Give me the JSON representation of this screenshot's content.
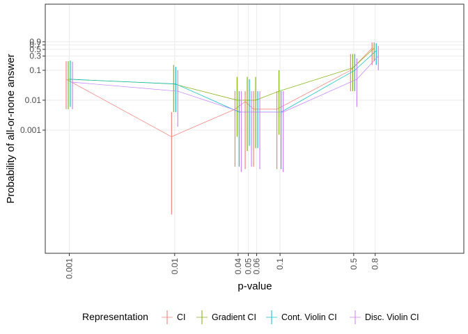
{
  "chart_data": {
    "type": "line",
    "xlabel": "p-value",
    "ylabel": "Probability of all-or-none answer",
    "x_scale": "log",
    "y_scale": "log",
    "x_ticks": [
      0.001,
      0.01,
      0.04,
      0.05,
      0.06,
      0.1,
      0.5,
      0.8
    ],
    "x_tick_labels": [
      "0.001",
      "0.01",
      "0.04",
      "0.05",
      "0.06",
      "0.1",
      "0.5",
      "0.8"
    ],
    "y_ticks": [
      0.001,
      0.01,
      0.1,
      0.3,
      0.5,
      0.7,
      0.9
    ],
    "y_tick_labels": [
      "0.001",
      "0.01",
      "0.1",
      "0.3",
      "0.5",
      "0.7",
      "0.9"
    ],
    "x": [
      0.001,
      0.01,
      0.04,
      0.05,
      0.06,
      0.1,
      0.5,
      0.8
    ],
    "legend_title": "Representation",
    "legend_position": "bottom",
    "grid": true,
    "series": [
      {
        "name": "CI",
        "color": "#F8766D",
        "values": [
          0.05,
          0.0006,
          0.005,
          0.009,
          0.005,
          0.005,
          0.1,
          0.55
        ],
        "lower": [
          0.005,
          1.5e-06,
          6e-05,
          5e-05,
          6e-05,
          5e-05,
          0.02,
          0.15
        ],
        "upper": [
          0.2,
          0.004,
          0.02,
          0.02,
          0.02,
          0.02,
          0.35,
          0.85
        ]
      },
      {
        "name": "Gradient CI",
        "color": "#7CAE00",
        "values": [
          0.05,
          0.035,
          0.01,
          0.01,
          0.01,
          0.02,
          0.12,
          0.55
        ],
        "lower": [
          0.005,
          0.004,
          0.0006,
          0.0002,
          0.00025,
          0.0007,
          0.02,
          0.2
        ],
        "upper": [
          0.2,
          0.15,
          0.06,
          0.06,
          0.06,
          0.1,
          0.35,
          0.85
        ]
      },
      {
        "name": "Cont. Violin CI",
        "color": "#00BFC4",
        "values": [
          0.05,
          0.035,
          0.004,
          0.004,
          0.004,
          0.004,
          0.1,
          0.45
        ],
        "lower": [
          0.006,
          0.004,
          6e-05,
          0.0003,
          0.00025,
          5e-05,
          0.02,
          0.15
        ],
        "upper": [
          0.21,
          0.13,
          0.02,
          0.05,
          0.02,
          0.02,
          0.35,
          0.8
        ]
      },
      {
        "name": "Disc. Violin CI",
        "color": "#C77CFF",
        "values": [
          0.04,
          0.02,
          0.004,
          0.004,
          0.004,
          0.004,
          0.05,
          0.3
        ],
        "lower": [
          0.005,
          0.0013,
          4e-05,
          6e-05,
          5e-05,
          4e-05,
          0.006,
          0.1
        ],
        "upper": [
          0.19,
          0.1,
          0.02,
          0.02,
          0.02,
          0.02,
          0.25,
          0.65
        ]
      }
    ]
  }
}
